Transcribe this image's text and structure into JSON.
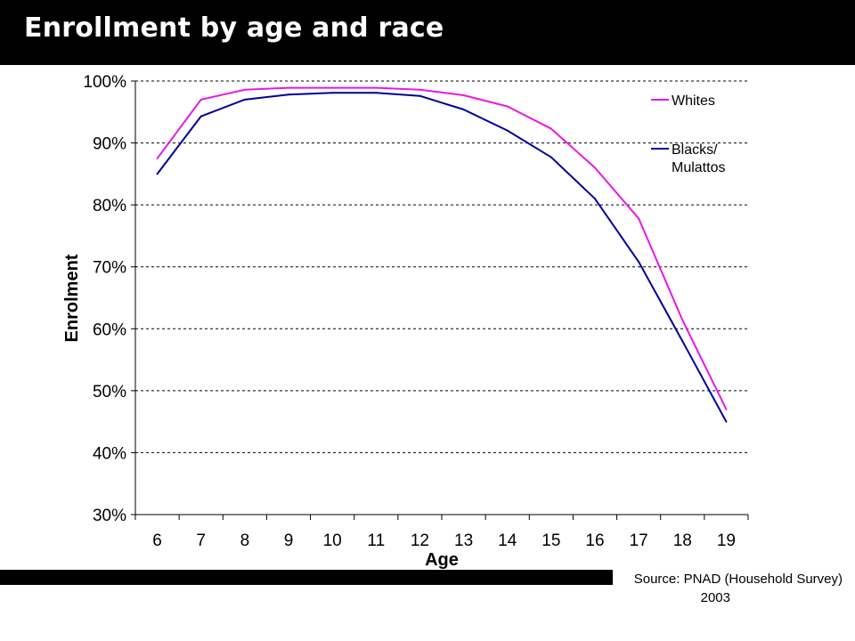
{
  "title": "Enrollment by age and race",
  "source": {
    "line1": "Source: PNAD (Household Survey)",
    "line2": "2003"
  },
  "colors": {
    "title_bar": "#000000",
    "whites": "#e619e6",
    "blacks": "#00009a"
  },
  "chart_data": {
    "type": "line",
    "title": "",
    "xlabel": "Age",
    "ylabel": "Enrolment",
    "categories": [
      "6",
      "7",
      "8",
      "9",
      "10",
      "11",
      "12",
      "13",
      "14",
      "15",
      "16",
      "17",
      "18",
      "19"
    ],
    "ylim": [
      30,
      100
    ],
    "yticks": [
      30,
      40,
      50,
      60,
      70,
      80,
      90,
      100
    ],
    "ytick_labels": [
      "30%",
      "40%",
      "50%",
      "60%",
      "70%",
      "80%",
      "90%",
      "100%"
    ],
    "grid": true,
    "legend": "right",
    "series": [
      {
        "name": "Whites",
        "color": "#e619e6",
        "values": [
          87.5,
          97.0,
          98.6,
          98.9,
          98.9,
          98.9,
          98.6,
          97.7,
          95.9,
          92.3,
          86.0,
          77.8,
          61.4,
          47.0
        ]
      },
      {
        "name": "Blacks/ Mulattos",
        "name_lines": [
          "Blacks/",
          "Mulattos"
        ],
        "color": "#00009a",
        "values": [
          85.0,
          94.3,
          97.0,
          97.8,
          98.1,
          98.1,
          97.6,
          95.4,
          92.0,
          87.7,
          81.0,
          70.8,
          58.0,
          45.0
        ]
      }
    ]
  }
}
